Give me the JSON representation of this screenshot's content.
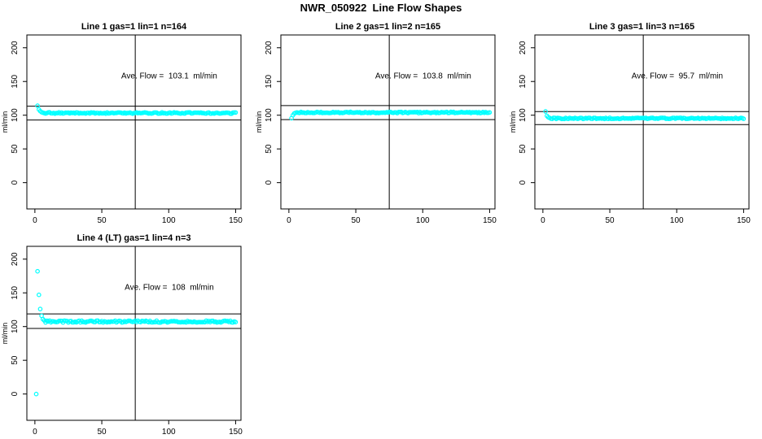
{
  "page_title": "NWR_050922  Line Flow Shapes",
  "colors": {
    "points": "#00ffff",
    "axis": "#000000",
    "background": "#ffffff",
    "text": "#000000"
  },
  "chart_data": [
    {
      "type": "scatter",
      "title": "Line 1 gas=1 lin=1 n=164",
      "annotation": "Ave. Flow =  103.1  ml/min",
      "ave_flow_ml_min": 103.1,
      "n": 164,
      "xlabel": "",
      "ylabel": "ml/min",
      "xticks": [
        0,
        50,
        100,
        150
      ],
      "yticks": [
        0,
        50,
        100,
        150,
        200
      ],
      "xlim": [
        -6,
        154
      ],
      "ylim": [
        -39,
        219
      ],
      "vline_x": 75,
      "hlines": [
        113.4,
        92.8
      ],
      "grid": false,
      "legend": "none",
      "series": {
        "name": "flow",
        "marker": "open-circle",
        "start_points": [
          [
            2,
            114
          ],
          [
            3,
            108.5
          ],
          [
            4,
            106
          ],
          [
            5,
            104.5
          ]
        ],
        "steady": {
          "from": 6,
          "to": 150,
          "value": 103.2,
          "jitter": 1.0
        }
      }
    },
    {
      "type": "scatter",
      "title": "Line 2 gas=1 lin=2 n=165",
      "annotation": "Ave. Flow =  103.8  ml/min",
      "ave_flow_ml_min": 103.8,
      "n": 165,
      "xlabel": "",
      "ylabel": "ml/min",
      "xticks": [
        0,
        50,
        100,
        150
      ],
      "yticks": [
        0,
        50,
        100,
        150,
        200
      ],
      "xlim": [
        -6,
        154
      ],
      "ylim": [
        -39,
        219
      ],
      "vline_x": 75,
      "hlines": [
        114.2,
        93.4
      ],
      "grid": false,
      "legend": "none",
      "series": {
        "name": "flow",
        "marker": "open-circle",
        "start_points": [
          [
            2,
            95.5
          ],
          [
            3,
            100
          ],
          [
            4,
            102.5
          ],
          [
            5,
            103.5
          ]
        ],
        "steady": {
          "from": 6,
          "to": 150,
          "value": 104.0,
          "jitter": 0.9
        }
      }
    },
    {
      "type": "scatter",
      "title": "Line 3 gas=1 lin=3 n=165",
      "annotation": "Ave. Flow =  95.7  ml/min",
      "ave_flow_ml_min": 95.7,
      "n": 165,
      "xlabel": "",
      "ylabel": "ml/min",
      "xticks": [
        0,
        50,
        100,
        150
      ],
      "yticks": [
        0,
        50,
        100,
        150,
        200
      ],
      "xlim": [
        -6,
        154
      ],
      "ylim": [
        -39,
        219
      ],
      "vline_x": 75,
      "hlines": [
        105.3,
        86.1
      ],
      "grid": false,
      "legend": "none",
      "series": {
        "name": "flow",
        "marker": "open-circle",
        "start_points": [
          [
            2,
            105.5
          ],
          [
            3,
            99
          ],
          [
            4,
            97
          ],
          [
            5,
            96
          ]
        ],
        "steady": {
          "from": 6,
          "to": 150,
          "value": 95.3,
          "jitter": 0.9
        }
      }
    },
    {
      "type": "scatter",
      "title": "Line 4 (LT) gas=1 lin=4 n=3",
      "annotation": "Ave. Flow =  108  ml/min",
      "ave_flow_ml_min": 108,
      "n": 3,
      "xlabel": "",
      "ylabel": "ml/min",
      "xticks": [
        0,
        50,
        100,
        150
      ],
      "yticks": [
        0,
        50,
        100,
        150,
        200
      ],
      "xlim": [
        -6,
        154
      ],
      "ylim": [
        -39,
        219
      ],
      "vline_x": 75,
      "hlines": [
        118.8,
        97.2
      ],
      "grid": false,
      "legend": "none",
      "series": {
        "name": "flow",
        "marker": "open-circle",
        "start_points": [
          [
            1,
            0
          ],
          [
            2,
            182
          ],
          [
            3,
            147
          ],
          [
            4,
            126
          ],
          [
            5,
            116
          ],
          [
            6,
            111
          ],
          [
            7,
            109
          ]
        ],
        "steady": {
          "from": 8,
          "to": 150,
          "value": 107.4,
          "jitter": 1.4
        }
      }
    }
  ]
}
